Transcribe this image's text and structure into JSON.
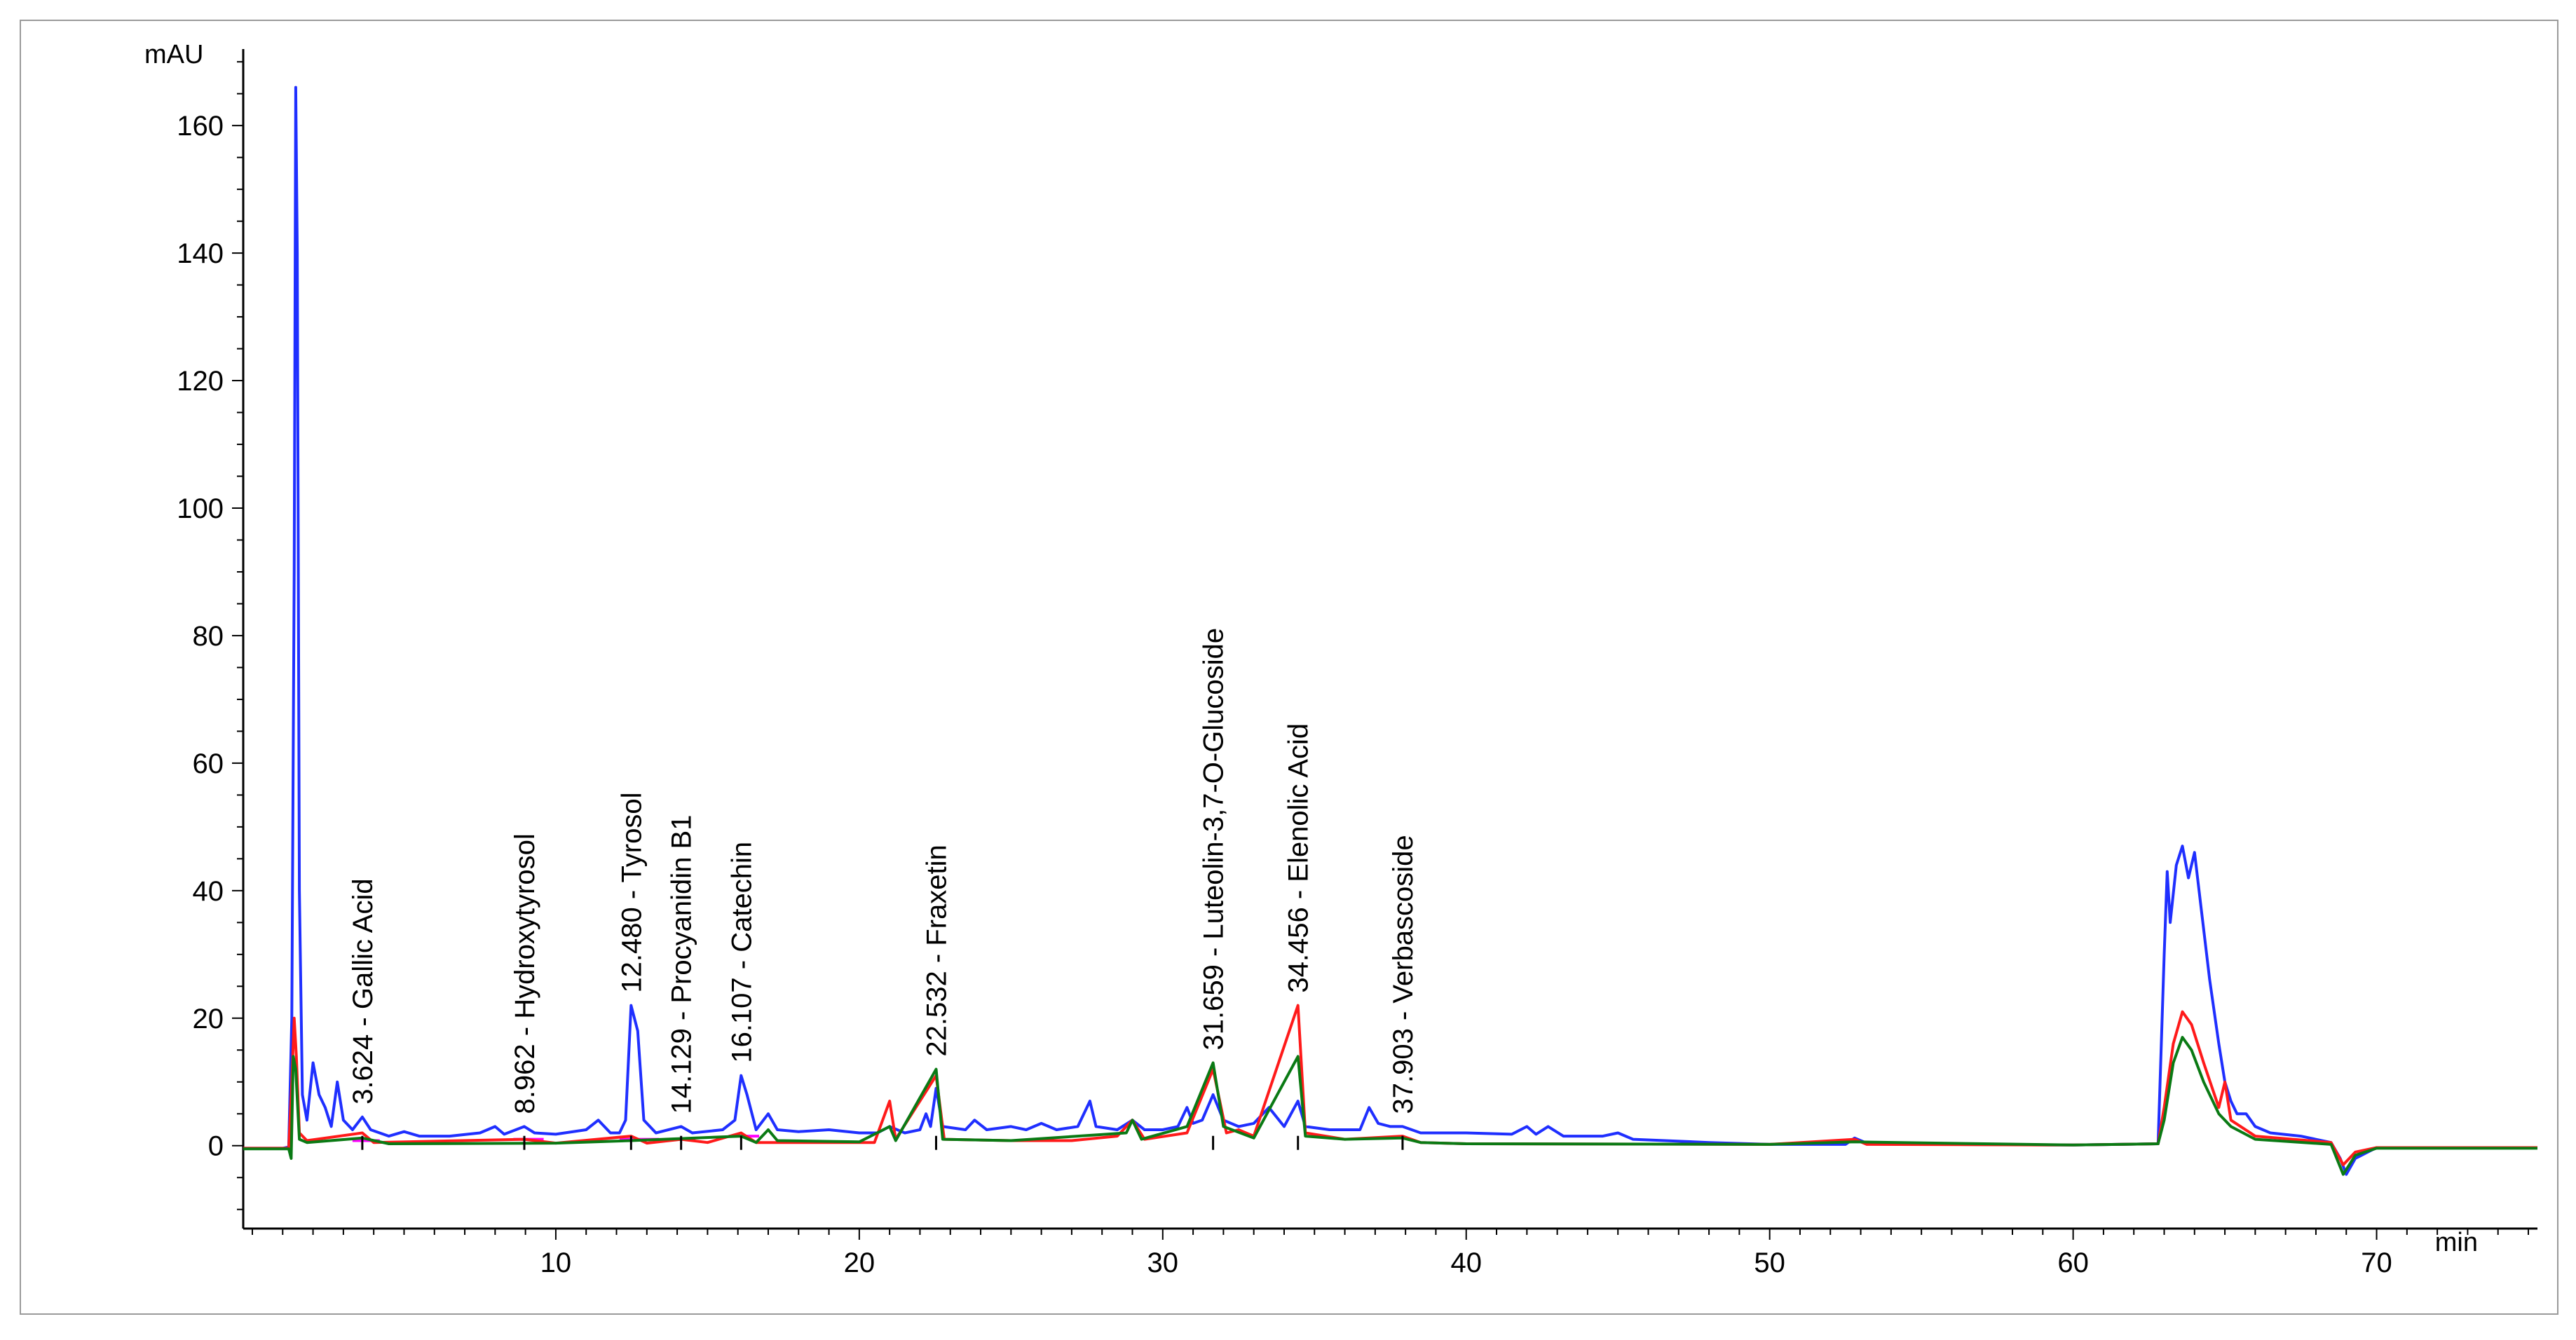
{
  "chart_data": {
    "type": "line",
    "title": "",
    "xlabel": "min",
    "ylabel": "mAU",
    "xlim": [
      -0.3,
      75.3
    ],
    "ylim": [
      -13,
      172
    ],
    "x_ticks": [
      10,
      20,
      30,
      40,
      50,
      60,
      70
    ],
    "y_ticks": [
      0,
      20,
      40,
      60,
      80,
      100,
      120,
      140,
      160
    ],
    "x_tick_labels": [
      "10",
      "20",
      "30",
      "40",
      "50",
      "60",
      "70"
    ],
    "y_tick_labels": [
      "0",
      "20",
      "40",
      "60",
      "80",
      "100",
      "120",
      "140",
      "160"
    ],
    "x_minor_step": 1,
    "y_minor_step": 5,
    "grid": false,
    "colors": {
      "signal_blue": "#1f2fff",
      "signal_red": "#ff1a1a",
      "signal_green": "#0a7a14",
      "baseline_magenta": "#ff00ff",
      "axis": "#000000",
      "frame": "#9a9a9a"
    },
    "series": [
      {
        "color": "#1f2fff",
        "points": [
          [
            -0.3,
            -0.4
          ],
          [
            1.0,
            -0.4
          ],
          [
            1.2,
            -0.2
          ],
          [
            1.3,
            20
          ],
          [
            1.38,
            90
          ],
          [
            1.43,
            166
          ],
          [
            1.48,
            140
          ],
          [
            1.55,
            40
          ],
          [
            1.65,
            8
          ],
          [
            1.8,
            4
          ],
          [
            2.0,
            13
          ],
          [
            2.2,
            8
          ],
          [
            2.4,
            6
          ],
          [
            2.6,
            3
          ],
          [
            2.8,
            10
          ],
          [
            3.0,
            4
          ],
          [
            3.3,
            2.5
          ],
          [
            3.624,
            4.5
          ],
          [
            3.9,
            2.5
          ],
          [
            4.5,
            1.5
          ],
          [
            5.0,
            2.2
          ],
          [
            5.5,
            1.5
          ],
          [
            6.5,
            1.5
          ],
          [
            7.5,
            2
          ],
          [
            8.0,
            3
          ],
          [
            8.3,
            1.8
          ],
          [
            8.962,
            3
          ],
          [
            9.3,
            2
          ],
          [
            10,
            1.8
          ],
          [
            11.0,
            2.5
          ],
          [
            11.4,
            4
          ],
          [
            11.8,
            2
          ],
          [
            12.1,
            2
          ],
          [
            12.3,
            4
          ],
          [
            12.48,
            22
          ],
          [
            12.7,
            18
          ],
          [
            12.9,
            4
          ],
          [
            13.3,
            2
          ],
          [
            14.129,
            3
          ],
          [
            14.5,
            2
          ],
          [
            15.5,
            2.5
          ],
          [
            15.9,
            4
          ],
          [
            16.107,
            11
          ],
          [
            16.3,
            8
          ],
          [
            16.6,
            2.5
          ],
          [
            17.0,
            5
          ],
          [
            17.3,
            2.5
          ],
          [
            18.0,
            2.2
          ],
          [
            19.0,
            2.5
          ],
          [
            20,
            2
          ],
          [
            20.6,
            2
          ],
          [
            21.0,
            3
          ],
          [
            21.5,
            2
          ],
          [
            22.0,
            2.5
          ],
          [
            22.2,
            5
          ],
          [
            22.35,
            3
          ],
          [
            22.532,
            9
          ],
          [
            22.75,
            3
          ],
          [
            23.5,
            2.5
          ],
          [
            23.8,
            4
          ],
          [
            24.2,
            2.5
          ],
          [
            25.0,
            3
          ],
          [
            25.5,
            2.5
          ],
          [
            26.0,
            3.5
          ],
          [
            26.5,
            2.5
          ],
          [
            27.2,
            3
          ],
          [
            27.6,
            7
          ],
          [
            27.8,
            3
          ],
          [
            28.5,
            2.5
          ],
          [
            29.0,
            4
          ],
          [
            29.4,
            2.5
          ],
          [
            30.0,
            2.5
          ],
          [
            30.5,
            3
          ],
          [
            30.8,
            6
          ],
          [
            31.0,
            3.5
          ],
          [
            31.3,
            4
          ],
          [
            31.659,
            8
          ],
          [
            32.0,
            4
          ],
          [
            32.5,
            3
          ],
          [
            33.0,
            3.5
          ],
          [
            33.5,
            6
          ],
          [
            34.0,
            3
          ],
          [
            34.456,
            7
          ],
          [
            34.7,
            3
          ],
          [
            35.5,
            2.5
          ],
          [
            36.5,
            2.5
          ],
          [
            36.8,
            6
          ],
          [
            37.1,
            3.5
          ],
          [
            37.5,
            3
          ],
          [
            37.903,
            3
          ],
          [
            38.5,
            2
          ],
          [
            39.5,
            2
          ],
          [
            40,
            2
          ],
          [
            41.5,
            1.8
          ],
          [
            42.0,
            3
          ],
          [
            42.3,
            1.8
          ],
          [
            42.7,
            3
          ],
          [
            43.2,
            1.5
          ],
          [
            44.5,
            1.5
          ],
          [
            45.0,
            2
          ],
          [
            45.5,
            1
          ],
          [
            48,
            0.5
          ],
          [
            50,
            0.2
          ],
          [
            52.5,
            0.2
          ],
          [
            52.8,
            1.2
          ],
          [
            53.2,
            0.4
          ],
          [
            56,
            0.2
          ],
          [
            60,
            0.1
          ],
          [
            62.8,
            0.3
          ],
          [
            63.0,
            30
          ],
          [
            63.1,
            43
          ],
          [
            63.2,
            35
          ],
          [
            63.4,
            44
          ],
          [
            63.6,
            47
          ],
          [
            63.8,
            42
          ],
          [
            64.0,
            46
          ],
          [
            64.2,
            38
          ],
          [
            64.5,
            26
          ],
          [
            64.8,
            16
          ],
          [
            65.0,
            10
          ],
          [
            65.2,
            7
          ],
          [
            65.4,
            5
          ],
          [
            65.7,
            5
          ],
          [
            66.0,
            3
          ],
          [
            66.5,
            2
          ],
          [
            67.5,
            1.5
          ],
          [
            68.5,
            0.5
          ],
          [
            68.8,
            -2
          ],
          [
            69.0,
            -4.5
          ],
          [
            69.3,
            -2
          ],
          [
            70,
            -0.3
          ],
          [
            72,
            -0.3
          ],
          [
            75.3,
            -0.3
          ]
        ]
      },
      {
        "color": "#ff1a1a",
        "points": [
          [
            -0.3,
            -0.4
          ],
          [
            1.2,
            -0.4
          ],
          [
            1.3,
            10
          ],
          [
            1.38,
            20
          ],
          [
            1.45,
            14
          ],
          [
            1.55,
            2
          ],
          [
            1.8,
            0.8
          ],
          [
            3.624,
            2
          ],
          [
            4.0,
            0.5
          ],
          [
            8.962,
            1
          ],
          [
            10,
            0.4
          ],
          [
            12.48,
            1.5
          ],
          [
            13,
            0.4
          ],
          [
            14.129,
            1
          ],
          [
            15,
            0.5
          ],
          [
            16.107,
            2
          ],
          [
            16.6,
            0.5
          ],
          [
            20.5,
            0.5
          ],
          [
            21.0,
            7
          ],
          [
            21.2,
            1
          ],
          [
            22.532,
            11
          ],
          [
            22.8,
            1
          ],
          [
            25,
            0.8
          ],
          [
            27,
            0.8
          ],
          [
            28.5,
            1.5
          ],
          [
            29.0,
            4
          ],
          [
            29.4,
            1
          ],
          [
            30.8,
            2
          ],
          [
            31.659,
            12
          ],
          [
            32.1,
            2
          ],
          [
            32.5,
            2.5
          ],
          [
            33,
            1.5
          ],
          [
            34.456,
            22
          ],
          [
            34.7,
            2
          ],
          [
            36,
            1
          ],
          [
            37.903,
            1.5
          ],
          [
            38.5,
            0.5
          ],
          [
            40,
            0.3
          ],
          [
            50,
            0.2
          ],
          [
            52.8,
            1
          ],
          [
            53.2,
            0.2
          ],
          [
            60,
            0.1
          ],
          [
            62.8,
            0.3
          ],
          [
            63.0,
            6
          ],
          [
            63.3,
            16
          ],
          [
            63.6,
            21
          ],
          [
            63.9,
            19
          ],
          [
            64.3,
            13
          ],
          [
            64.8,
            6
          ],
          [
            65.0,
            10
          ],
          [
            65.2,
            4
          ],
          [
            66,
            1.5
          ],
          [
            68.5,
            0.5
          ],
          [
            68.9,
            -3
          ],
          [
            69.3,
            -1
          ],
          [
            70,
            -0.3
          ],
          [
            75.3,
            -0.3
          ]
        ]
      },
      {
        "color": "#0a7a14",
        "points": [
          [
            -0.3,
            -0.5
          ],
          [
            1.2,
            -0.5
          ],
          [
            1.28,
            -2
          ],
          [
            1.35,
            14
          ],
          [
            1.43,
            12
          ],
          [
            1.55,
            1
          ],
          [
            1.8,
            0.5
          ],
          [
            3.624,
            1.2
          ],
          [
            4.5,
            0.3
          ],
          [
            10,
            0.4
          ],
          [
            12.48,
            0.8
          ],
          [
            16.107,
            1.5
          ],
          [
            16.6,
            0.5
          ],
          [
            17.0,
            2.5
          ],
          [
            17.3,
            0.8
          ],
          [
            20,
            0.6
          ],
          [
            21.0,
            3
          ],
          [
            21.2,
            0.8
          ],
          [
            22.532,
            12
          ],
          [
            22.75,
            1
          ],
          [
            25,
            0.8
          ],
          [
            28.8,
            2
          ],
          [
            29.0,
            4
          ],
          [
            29.3,
            1
          ],
          [
            30.8,
            3
          ],
          [
            31.659,
            13
          ],
          [
            32.0,
            3
          ],
          [
            33,
            1.2
          ],
          [
            34.456,
            14
          ],
          [
            34.7,
            1.5
          ],
          [
            36,
            1
          ],
          [
            37.903,
            1.2
          ],
          [
            38.5,
            0.5
          ],
          [
            40,
            0.3
          ],
          [
            50,
            0.2
          ],
          [
            52.8,
            0.6
          ],
          [
            60,
            0.1
          ],
          [
            62.8,
            0.3
          ],
          [
            63.0,
            4
          ],
          [
            63.3,
            13
          ],
          [
            63.6,
            17
          ],
          [
            63.9,
            15
          ],
          [
            64.3,
            10
          ],
          [
            64.8,
            5
          ],
          [
            65.2,
            3
          ],
          [
            66,
            1
          ],
          [
            68.5,
            0.2
          ],
          [
            68.9,
            -4.5
          ],
          [
            69.3,
            -1.5
          ],
          [
            70,
            -0.4
          ],
          [
            75.3,
            -0.4
          ]
        ]
      }
    ],
    "baseline_segments": [
      {
        "color": "#ff00ff",
        "x": [
          3.3,
          4.2
        ],
        "y": 0.8
      },
      {
        "color": "#ff00ff",
        "x": [
          8.6,
          9.6
        ],
        "y": 1.0
      },
      {
        "color": "#ff00ff",
        "x": [
          12.1,
          13.4
        ],
        "y": 1.0
      },
      {
        "color": "#ff00ff",
        "x": [
          13.8,
          14.6
        ],
        "y": 1.0
      },
      {
        "color": "#ff00ff",
        "x": [
          15.7,
          16.7
        ],
        "y": 1.5
      }
    ],
    "peak_annotations": [
      {
        "x": 3.624,
        "label": "3.624 -  Gallic Acid"
      },
      {
        "x": 8.962,
        "label": "8.962 -  Hydroxytyrosol"
      },
      {
        "x": 12.48,
        "label": "12.480 -  Tyrosol"
      },
      {
        "x": 14.129,
        "label": "14.129 -  Procyanidin B1"
      },
      {
        "x": 16.107,
        "label": "16.107 -  Catechin"
      },
      {
        "x": 22.532,
        "label": "22.532 -  Fraxetin"
      },
      {
        "x": 31.659,
        "label": "31.659 -  Luteolin-3,7-O-Glucoside"
      },
      {
        "x": 34.456,
        "label": "34.456 -  Elenolic Acid"
      },
      {
        "x": 37.903,
        "label": "37.903 -  Verbascoside"
      }
    ]
  }
}
